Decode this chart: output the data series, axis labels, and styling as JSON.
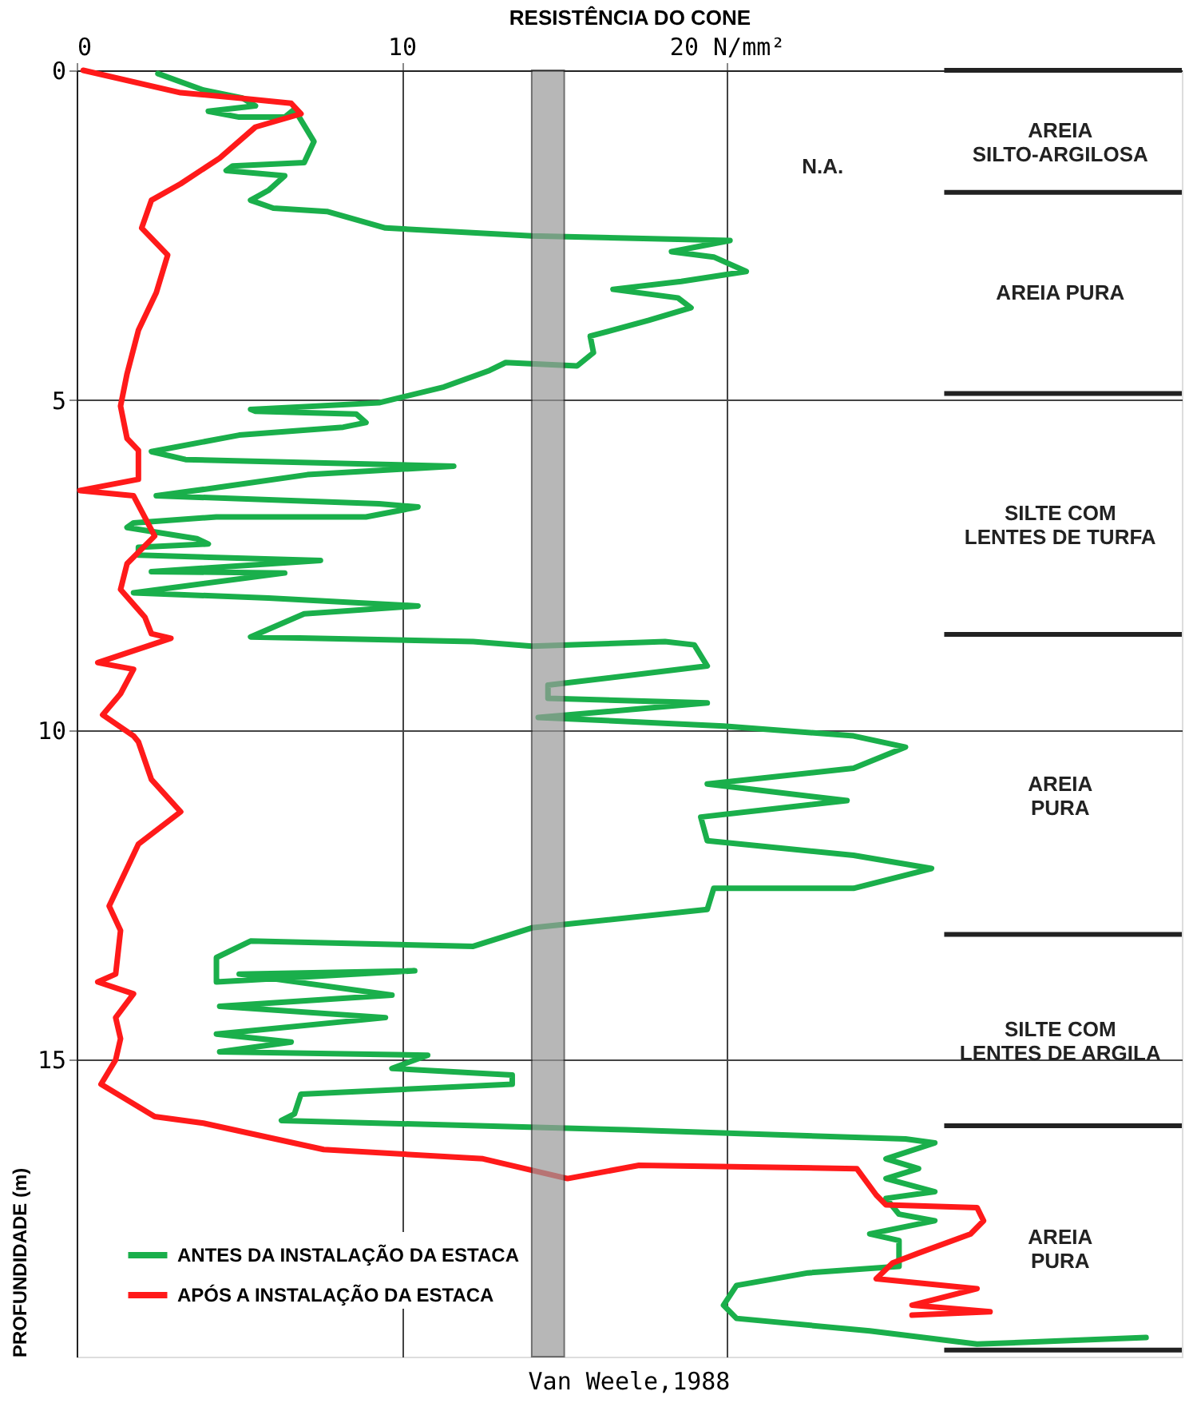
{
  "chart_data": {
    "type": "line",
    "xlabel": "RESISTÊNCIA DO CONE",
    "ylabel": "PROFUNDIDADE (m)",
    "xlim": [
      0,
      34
    ],
    "xticks": [
      0,
      10,
      {
        "value": 20,
        "label": "20 N/mm²"
      }
    ],
    "ylim": [
      19.5,
      0
    ],
    "yticks": [
      0,
      5,
      10,
      15
    ],
    "grid": true,
    "legend": "bottom left",
    "marker": "none",
    "line_style": "solid",
    "series": [
      {
        "name": "ANTES DA INSTALAÇÃO DA ESTACA",
        "color": "#1aaf4b",
        "x": [
          2.5,
          3.9,
          5.1,
          5.5,
          4.05,
          5.0,
          6.4,
          6.7,
          7.3,
          7.0,
          4.8,
          4.6,
          6.4,
          5.9,
          5.35,
          6.05,
          7.7,
          9.5,
          14.0,
          20.1,
          18.3,
          19.6,
          20.6,
          18.6,
          16.5,
          18.5,
          18.9,
          17.6,
          15.8,
          15.9,
          15.4,
          13.2,
          12.7,
          11.3,
          9.3,
          5.35,
          5.5,
          8.6,
          8.9,
          8.2,
          5.0,
          2.3,
          3.35,
          11.6,
          7.1,
          4.4,
          2.45,
          9.3,
          10.5,
          8.9,
          4.3,
          1.75,
          1.55,
          3.7,
          4.05,
          1.9,
          1.9,
          7.5,
          2.3,
          6.4,
          1.75,
          5.9,
          10.5,
          7.0,
          5.35,
          12.2,
          14.0,
          18.1,
          19.0,
          19.4,
          14.5,
          14.5,
          19.4,
          14.2,
          19.9,
          23.9,
          25.5,
          23.9,
          19.4,
          23.7,
          19.2,
          19.4,
          23.9,
          26.3,
          23.9,
          19.6,
          19.4,
          14.0,
          12.2,
          5.35,
          4.3,
          4.3,
          10.4,
          5.0,
          9.7,
          4.4,
          9.5,
          4.3,
          6.6,
          4.4,
          10.8,
          9.7,
          13.4,
          13.4,
          6.9,
          6.7,
          6.3,
          16.9,
          25.5,
          26.4,
          24.9,
          25.9,
          24.9,
          26.4,
          24.9,
          25.3,
          26.4,
          24.4,
          25.3,
          25.3,
          22.5,
          20.3,
          19.9,
          20.3,
          24.4,
          27.7,
          32.9
        ],
        "values": [
          0.05,
          0.3,
          0.42,
          0.54,
          0.62,
          0.71,
          0.71,
          0.59,
          1.08,
          1.4,
          1.45,
          1.52,
          1.6,
          1.82,
          1.97,
          2.09,
          2.14,
          2.39,
          2.51,
          2.58,
          2.75,
          2.83,
          3.05,
          3.2,
          3.32,
          3.45,
          3.6,
          3.79,
          4.03,
          4.28,
          4.48,
          4.43,
          4.55,
          4.8,
          5.04,
          5.14,
          5.17,
          5.21,
          5.34,
          5.41,
          5.53,
          5.78,
          5.9,
          6.0,
          6.13,
          6.32,
          6.45,
          6.57,
          6.62,
          6.77,
          6.77,
          6.86,
          6.93,
          7.1,
          7.18,
          7.23,
          7.35,
          7.43,
          7.6,
          7.62,
          7.92,
          8.0,
          8.12,
          8.24,
          8.59,
          8.66,
          8.73,
          8.66,
          8.71,
          9.03,
          9.32,
          9.52,
          9.59,
          9.81,
          9.94,
          10.09,
          10.26,
          10.58,
          10.82,
          11.07,
          11.32,
          11.68,
          11.9,
          12.1,
          12.4,
          12.4,
          12.72,
          13.0,
          13.28,
          13.2,
          13.45,
          13.82,
          13.65,
          13.7,
          14.02,
          14.19,
          14.36,
          14.61,
          14.73,
          14.88,
          14.93,
          15.13,
          15.23,
          15.37,
          15.52,
          15.82,
          15.92,
          16.06,
          16.2,
          16.26,
          16.5,
          16.65,
          16.8,
          17.0,
          17.1,
          17.34,
          17.44,
          17.64,
          17.74,
          18.13,
          18.23,
          18.42,
          18.72,
          18.92,
          19.11,
          19.31,
          19.21
        ]
      },
      {
        "name": "APÓS A INSTALAÇÃO DA ESTACA",
        "color": "#ff1a1a",
        "x": [
          0.2,
          3.2,
          5.0,
          6.6,
          6.9,
          5.5,
          4.4,
          3.2,
          2.3,
          2.0,
          2.8,
          2.45,
          1.9,
          1.55,
          1.35,
          1.55,
          1.9,
          1.9,
          0.1,
          1.75,
          2.4,
          1.55,
          1.35,
          2.1,
          2.3,
          2.9,
          0.65,
          1.75,
          1.35,
          0.8,
          1.75,
          1.9,
          2.3,
          3.2,
          1.9,
          1.0,
          1.35,
          1.2,
          0.65,
          1.75,
          1.2,
          1.35,
          1.2,
          0.75,
          2.4,
          3.9,
          7.6,
          12.5,
          15.1,
          17.3,
          24.0,
          24.6,
          24.9,
          27.7,
          27.9,
          27.5,
          25.9,
          25.1,
          24.6,
          27.7,
          25.7,
          28.1,
          25.7
        ],
        "values": [
          0.0,
          0.34,
          0.42,
          0.5,
          0.66,
          0.86,
          1.33,
          1.72,
          1.97,
          2.39,
          2.8,
          3.37,
          3.94,
          4.6,
          5.09,
          5.58,
          5.76,
          6.2,
          6.37,
          6.45,
          7.06,
          7.48,
          7.87,
          8.29,
          8.54,
          8.61,
          8.98,
          9.08,
          9.45,
          9.77,
          10.09,
          10.18,
          10.75,
          11.24,
          11.73,
          12.67,
          13.04,
          13.7,
          13.82,
          14.0,
          14.36,
          14.68,
          15.0,
          15.37,
          15.86,
          15.96,
          16.36,
          16.5,
          16.8,
          16.6,
          16.65,
          17.05,
          17.2,
          17.24,
          17.44,
          17.64,
          17.93,
          18.08,
          18.32,
          18.47,
          18.72,
          18.82,
          18.87
        ]
      }
    ],
    "bands": [
      {
        "axis": "x",
        "from": 14.0,
        "to": 15.0,
        "color": "#9a9a9a"
      }
    ],
    "ref_lines": [
      {
        "axis": "y",
        "value": 0,
        "color": "#222222"
      },
      {
        "axis": "y",
        "value": 1.85,
        "color": "#222222"
      },
      {
        "axis": "y",
        "value": 4.9,
        "color": "#222222"
      },
      {
        "axis": "y",
        "value": 8.55,
        "color": "#222222"
      },
      {
        "axis": "y",
        "value": 13.1,
        "color": "#222222"
      },
      {
        "axis": "y",
        "value": 16.0,
        "color": "#222222"
      },
      {
        "axis": "y",
        "value": 19.4,
        "color": "#222222"
      }
    ],
    "annotations": [
      "AREIA\nSILTO-ARGILOSA",
      "AREIA PURA",
      "SILTE COM\nLENTES DE TURFA",
      "AREIA\nPURA",
      "SILTE COM\nLENTES DE ARGILA",
      "AREIA\nPURA",
      "N.A.",
      "Van Weele,1988"
    ]
  }
}
